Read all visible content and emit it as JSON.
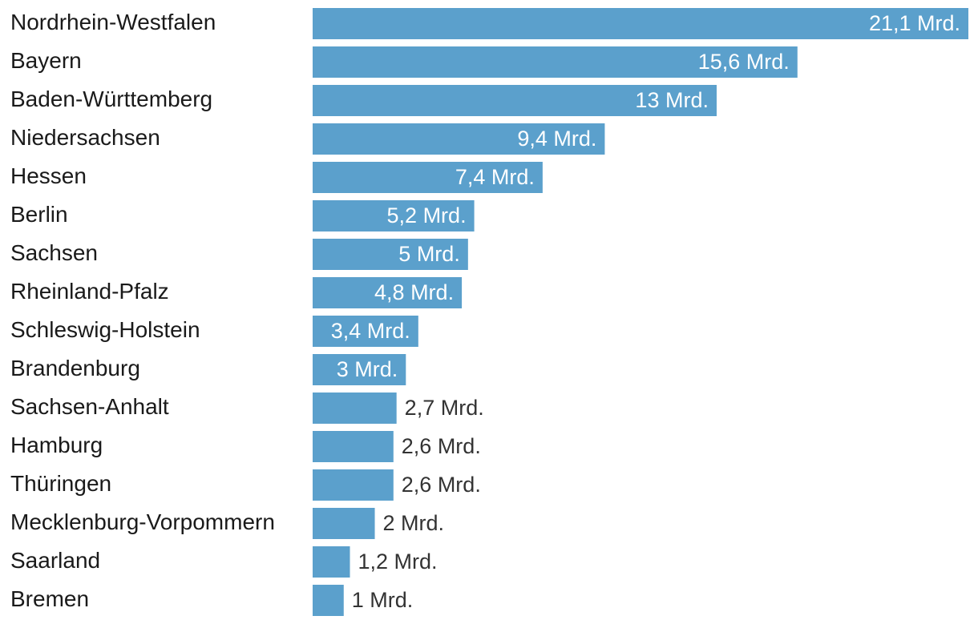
{
  "chart_data": {
    "type": "bar",
    "orientation": "horizontal",
    "categories": [
      "Nordrhein-Westfalen",
      "Bayern",
      "Baden-Württemberg",
      "Niedersachsen",
      "Hessen",
      "Berlin",
      "Sachsen",
      "Rheinland-Pfalz",
      "Schleswig-Holstein",
      "Brandenburg",
      "Sachsen-Anhalt",
      "Hamburg",
      "Thüringen",
      "Mecklenburg-Vorpommern",
      "Saarland",
      "Bremen"
    ],
    "values": [
      21.1,
      15.6,
      13,
      9.4,
      7.4,
      5.2,
      5,
      4.8,
      3.4,
      3,
      2.7,
      2.6,
      2.6,
      2,
      1.2,
      1
    ],
    "value_labels": [
      "21,1 Mrd.",
      "15,6 Mrd.",
      "13 Mrd.",
      "9,4 Mrd.",
      "7,4 Mrd.",
      "5,2 Mrd.",
      "5 Mrd.",
      "4,8 Mrd.",
      "3,4 Mrd.",
      "3 Mrd.",
      "2,7 Mrd.",
      "2,6 Mrd.",
      "2,6 Mrd.",
      "2 Mrd.",
      "1,2 Mrd.",
      "1 Mrd."
    ],
    "xlim": [
      0,
      21.1
    ],
    "grid": false,
    "colors": {
      "bar": "#5ba0cc",
      "label_inside": "#ffffff",
      "label_outside": "#333333",
      "category_text": "#1a1a1a"
    }
  }
}
